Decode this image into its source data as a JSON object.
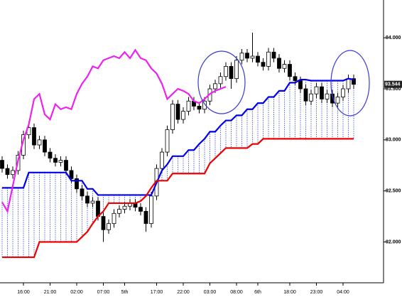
{
  "chart_data": {
    "type": "candlestick",
    "ylim": [
      91.6,
      94.37
    ],
    "yticks": [
      {
        "value": 92,
        "label": "92.000"
      },
      {
        "value": 92.5,
        "label": "92.500"
      },
      {
        "value": 93,
        "label": "93.000"
      },
      {
        "value": 93.5,
        "label": "93.500"
      },
      {
        "value": 94,
        "label": "94.000"
      }
    ],
    "xticks": [
      {
        "value": 4,
        "label": "16:00"
      },
      {
        "value": 9,
        "label": "21:00"
      },
      {
        "value": 14,
        "label": "02:00"
      },
      {
        "value": 19,
        "label": "07:00"
      },
      {
        "value": 23,
        "label": "5th"
      },
      {
        "value": 29,
        "label": "17:00"
      },
      {
        "value": 34,
        "label": "22:00"
      },
      {
        "value": 39,
        "label": "03:00"
      },
      {
        "value": 44,
        "label": "08:00"
      },
      {
        "value": 48,
        "label": "6th"
      },
      {
        "value": 54,
        "label": "18:00"
      },
      {
        "value": 59,
        "label": "23:00"
      },
      {
        "value": 64,
        "label": "04:00"
      }
    ],
    "last_price": 93.544,
    "open": [
      92.8,
      92.72,
      92.66,
      92.7,
      92.85,
      93.05,
      93.12,
      92.95,
      93.0,
      92.88,
      92.82,
      92.78,
      92.8,
      92.7,
      92.62,
      92.52,
      92.45,
      92.38,
      92.4,
      92.25,
      92.12,
      92.18,
      92.28,
      92.32,
      92.35,
      92.38,
      92.34,
      92.3,
      92.18,
      92.45,
      92.72,
      92.88,
      93.1,
      93.35,
      93.2,
      93.28,
      93.38,
      93.33,
      93.3,
      93.38,
      93.5,
      93.55,
      93.62,
      93.72,
      93.6,
      93.78,
      93.85,
      93.8,
      93.82,
      93.76,
      93.72,
      93.86,
      93.8,
      93.7,
      93.74,
      93.62,
      93.58,
      93.5,
      93.38,
      93.45,
      93.52,
      93.4,
      93.45,
      93.36,
      93.42,
      93.5,
      93.6
    ],
    "high": [
      92.84,
      92.76,
      92.74,
      92.89,
      93.09,
      93.18,
      93.16,
      93.04,
      93.04,
      92.92,
      92.86,
      92.84,
      92.84,
      92.74,
      92.66,
      92.56,
      92.49,
      92.44,
      92.44,
      92.29,
      92.22,
      92.32,
      92.36,
      92.39,
      92.42,
      92.42,
      92.38,
      92.34,
      92.49,
      92.76,
      92.92,
      93.14,
      93.39,
      93.39,
      93.32,
      93.42,
      93.42,
      93.37,
      93.42,
      93.54,
      93.59,
      93.66,
      93.76,
      93.76,
      93.82,
      93.89,
      93.89,
      94.05,
      93.86,
      93.8,
      93.9,
      93.9,
      93.84,
      93.78,
      93.78,
      93.66,
      93.62,
      93.54,
      93.49,
      93.56,
      93.56,
      93.49,
      93.49,
      93.46,
      93.54,
      93.64,
      93.64
    ],
    "low": [
      92.68,
      92.62,
      92.62,
      92.66,
      92.81,
      93.01,
      92.91,
      92.91,
      92.84,
      92.78,
      92.74,
      92.74,
      92.66,
      92.58,
      92.48,
      92.41,
      92.34,
      92.34,
      92.21,
      92.0,
      92.08,
      92.14,
      92.24,
      92.28,
      92.31,
      92.3,
      92.26,
      92.1,
      92.14,
      92.41,
      92.68,
      92.84,
      93.06,
      93.16,
      93.16,
      93.24,
      93.29,
      93.26,
      93.26,
      93.34,
      93.46,
      93.51,
      93.58,
      93.5,
      93.56,
      93.74,
      93.76,
      93.76,
      93.72,
      93.68,
      93.68,
      93.76,
      93.66,
      93.66,
      93.58,
      93.54,
      93.46,
      93.34,
      93.34,
      93.41,
      93.36,
      93.36,
      93.32,
      93.32,
      93.38,
      93.46,
      93.5
    ],
    "close": [
      92.72,
      92.66,
      92.7,
      92.85,
      93.05,
      93.12,
      92.95,
      93.0,
      92.88,
      92.82,
      92.78,
      92.8,
      92.7,
      92.62,
      92.52,
      92.45,
      92.38,
      92.4,
      92.25,
      92.12,
      92.18,
      92.28,
      92.32,
      92.35,
      92.38,
      92.34,
      92.3,
      92.18,
      92.45,
      92.72,
      92.88,
      93.1,
      93.35,
      93.2,
      93.28,
      93.38,
      93.33,
      93.3,
      93.38,
      93.5,
      93.55,
      93.62,
      93.72,
      93.6,
      93.78,
      93.85,
      93.8,
      93.82,
      93.76,
      93.72,
      93.86,
      93.8,
      93.7,
      93.74,
      93.62,
      93.58,
      93.5,
      93.38,
      93.45,
      93.52,
      93.4,
      93.45,
      93.36,
      93.42,
      93.5,
      93.6,
      93.544
    ],
    "lines": [
      {
        "color": "#0000ee",
        "values": [
          92.53,
          92.53,
          92.53,
          92.53,
          92.53,
          92.68,
          92.68,
          92.68,
          92.68,
          92.68,
          92.68,
          92.68,
          92.68,
          92.6,
          92.6,
          92.6,
          92.52,
          92.52,
          92.46,
          92.46,
          92.46,
          92.46,
          92.46,
          92.46,
          92.46,
          92.46,
          92.46,
          92.46,
          92.46,
          92.58,
          92.7,
          92.76,
          92.84,
          92.84,
          92.84,
          92.9,
          92.9,
          92.96,
          93.01,
          93.08,
          93.08,
          93.14,
          93.19,
          93.19,
          93.24,
          93.24,
          93.3,
          93.3,
          93.36,
          93.36,
          93.42,
          93.42,
          93.48,
          93.48,
          93.56,
          93.56,
          93.59,
          93.59,
          93.58,
          93.58,
          93.58,
          93.58,
          93.58,
          93.58,
          93.58,
          93.6,
          93.59
        ]
      },
      {
        "color": "#ee0000",
        "values": [
          91.85,
          91.85,
          91.85,
          91.85,
          91.85,
          91.85,
          91.85,
          92.0,
          92.0,
          92.0,
          92.0,
          92.0,
          92.0,
          92.0,
          92.0,
          92.05,
          92.1,
          92.18,
          92.25,
          92.3,
          92.38,
          92.38,
          92.38,
          92.38,
          92.38,
          92.38,
          92.4,
          92.45,
          92.53,
          92.6,
          92.6,
          92.6,
          92.67,
          92.67,
          92.67,
          92.67,
          92.67,
          92.67,
          92.67,
          92.77,
          92.82,
          92.87,
          92.92,
          92.92,
          92.92,
          92.92,
          92.92,
          92.96,
          92.96,
          93.01,
          93.01,
          93.01,
          93.01,
          93.01,
          93.01,
          93.01,
          93.01,
          93.01,
          93.01,
          93.01,
          93.01,
          93.01,
          93.01,
          93.01,
          93.01,
          93.01,
          93.01
        ]
      },
      {
        "color": "#ee22ee",
        "values": [
          92.39,
          92.3,
          92.55,
          92.8,
          93.0,
          93.15,
          93.4,
          93.45,
          93.25,
          93.2,
          93.35,
          93.3,
          93.32,
          93.3,
          93.45,
          93.55,
          93.62,
          93.72,
          93.7,
          93.78,
          93.8,
          93.82,
          93.8,
          93.86,
          93.8,
          93.88,
          93.8,
          93.78,
          93.7,
          93.65,
          93.55,
          93.4,
          93.45,
          93.5,
          93.48,
          93.45,
          93.38,
          93.36,
          93.4,
          93.45,
          93.48,
          93.5,
          93.52,
          null,
          null,
          null,
          null,
          null,
          null,
          null,
          null,
          null,
          null,
          null,
          null,
          null,
          null,
          null,
          null,
          null,
          null,
          null,
          null,
          null,
          null,
          null,
          null
        ]
      }
    ]
  }
}
